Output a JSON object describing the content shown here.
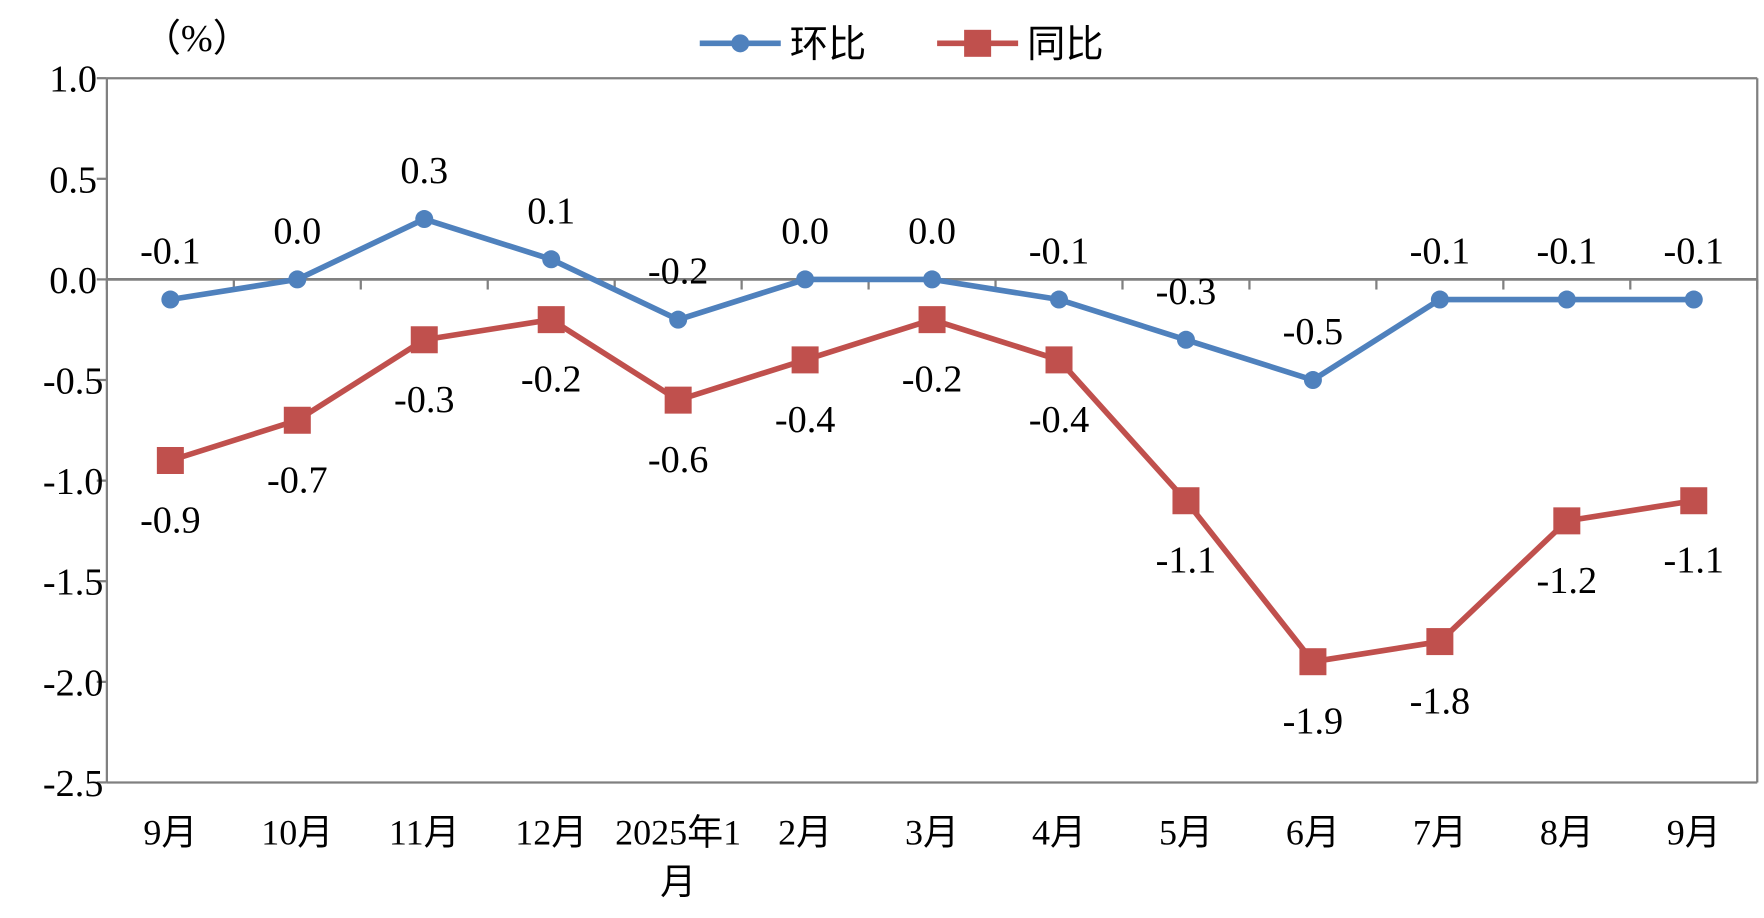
{
  "chart_data": {
    "type": "line",
    "unit_label": "（%）",
    "categories": [
      "9月",
      "10月",
      "11月",
      "12月",
      "2025年1月",
      "2月",
      "3月",
      "4月",
      "5月",
      "6月",
      "7月",
      "8月",
      "9月"
    ],
    "series": [
      {
        "name": "环比",
        "color": "#4F81BD",
        "marker": "circle",
        "values": [
          -0.1,
          0.0,
          0.3,
          0.1,
          -0.2,
          0.0,
          0.0,
          -0.1,
          -0.3,
          -0.5,
          -0.1,
          -0.1,
          -0.1
        ]
      },
      {
        "name": "同比",
        "color": "#C0504D",
        "marker": "square",
        "values": [
          -0.9,
          -0.7,
          -0.3,
          -0.2,
          -0.6,
          -0.4,
          -0.2,
          -0.4,
          -1.1,
          -1.9,
          -1.8,
          -1.2,
          -1.1
        ]
      }
    ],
    "ylim": [
      -2.5,
      1.0
    ],
    "yticks": [
      "1.0",
      "0.5",
      "0.0",
      "-0.5",
      "-1.0",
      "-1.5",
      "-2.0",
      "-2.5"
    ],
    "grid": false,
    "legend": "top-center",
    "data_labels": true
  }
}
